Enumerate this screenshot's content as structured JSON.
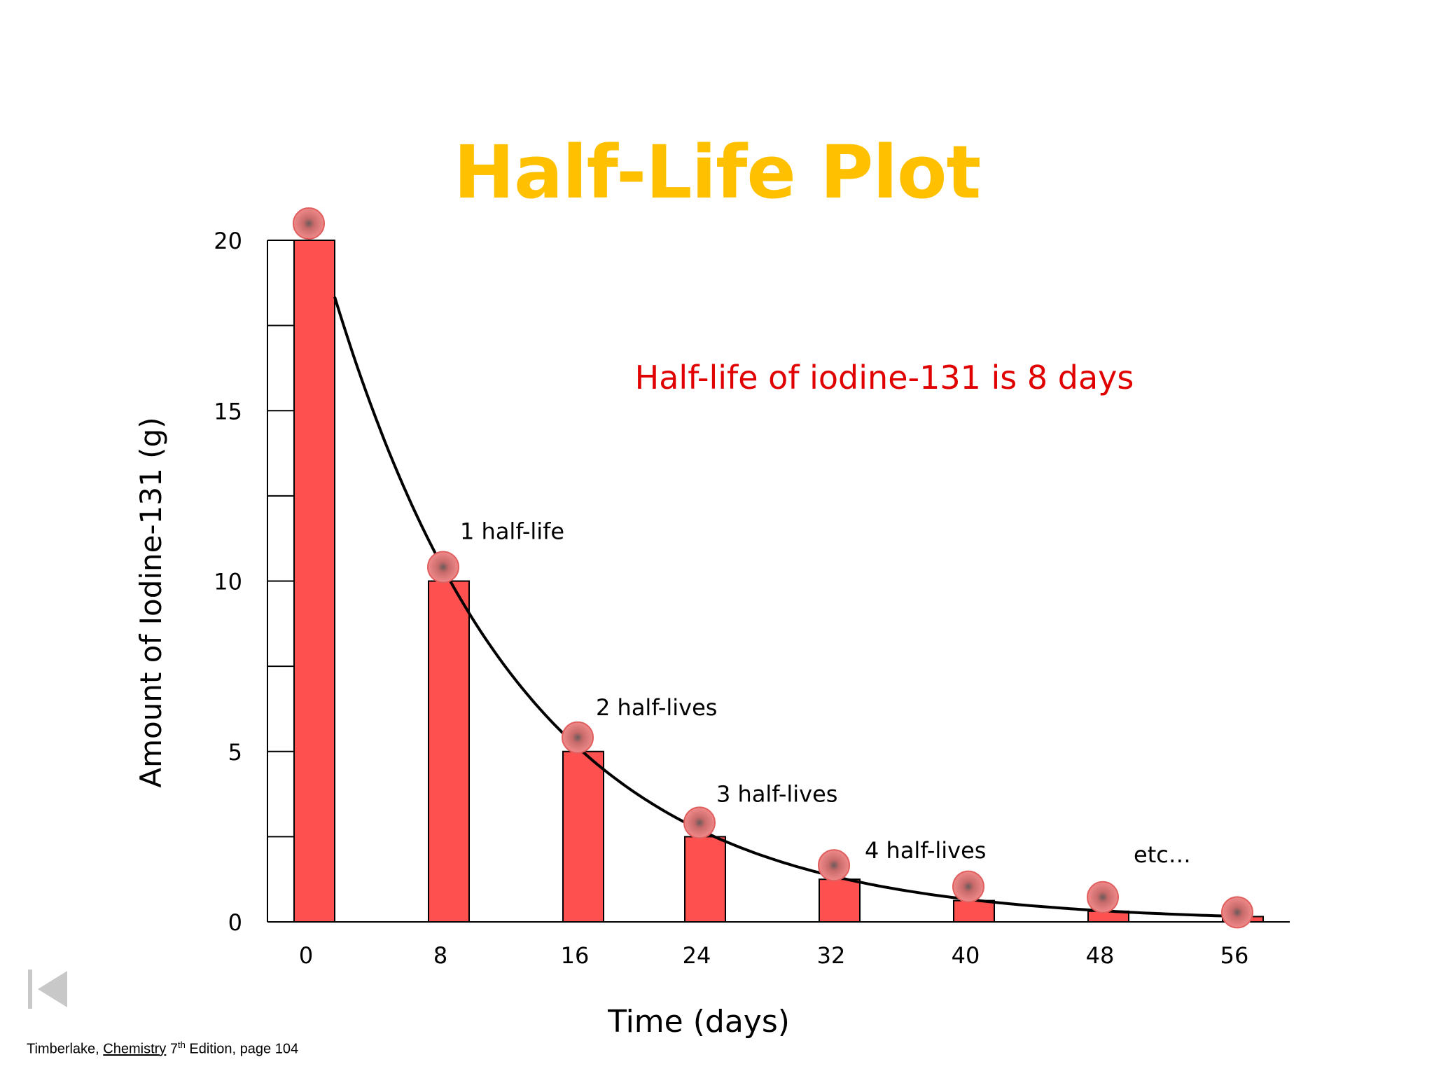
{
  "slide": {
    "title": "Half-Life Plot",
    "note": "Half-life of iodine-131 is 8 days",
    "citation": {
      "author": "Timberlake, ",
      "book": "Chemistry",
      "edition_sup": "th",
      "edition_num": " 7",
      "rest": " Edition, page 104"
    }
  },
  "colors": {
    "title": "#ffc000",
    "bar": "#ff5050",
    "note": "#e00000",
    "marker": "#e86a6a"
  },
  "icons": {
    "nav": "first-slide-icon"
  },
  "chart_data": {
    "type": "bar",
    "title": "",
    "xlabel": "Time (days)",
    "ylabel": "Amount of Iodine-131 (g)",
    "categories": [
      "0",
      "8",
      "16",
      "24",
      "32",
      "40",
      "48",
      "56"
    ],
    "x": [
      0,
      8,
      16,
      24,
      32,
      40,
      48,
      56
    ],
    "values": [
      20,
      10,
      5,
      2.5,
      1.25,
      0.625,
      0.3125,
      0.156
    ],
    "ylim": [
      0,
      20
    ],
    "yticks": [
      0,
      5,
      10,
      15,
      20
    ],
    "grid": false,
    "curve": "exponential decay through bar tops",
    "annotations": [
      {
        "x": 8,
        "text": "1 half-life"
      },
      {
        "x": 16,
        "text": "2 half-lives"
      },
      {
        "x": 24,
        "text": "3 half-lives"
      },
      {
        "x": 32,
        "text": "4 half-lives"
      },
      {
        "x": 48,
        "text": "etc…"
      }
    ]
  }
}
